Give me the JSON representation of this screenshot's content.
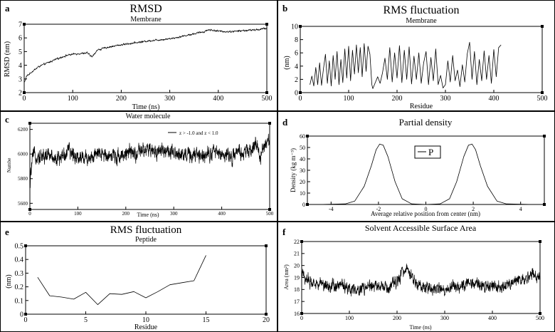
{
  "chart_data": [
    {
      "panel_label": "a",
      "type": "line",
      "title": "RMSD",
      "subtitle": "Membrane",
      "xlabel": "Time (ns)",
      "ylabel": "RMSD (nm)",
      "xlim": [
        0,
        500
      ],
      "ylim": [
        2,
        7
      ],
      "xticks": [
        0,
        100,
        200,
        300,
        400,
        500
      ],
      "yticks": [
        2,
        3,
        4,
        5,
        6,
        7
      ],
      "noise": 0.06,
      "series": [
        {
          "name": "Membrane",
          "x": [
            0,
            5,
            15,
            30,
            50,
            70,
            90,
            110,
            130,
            140,
            150,
            170,
            200,
            230,
            260,
            290,
            310,
            330,
            350,
            370,
            380,
            400,
            420,
            440,
            460,
            480,
            500
          ],
          "y": [
            2.7,
            3.2,
            3.5,
            3.9,
            4.2,
            4.5,
            4.75,
            4.85,
            4.9,
            4.6,
            5.1,
            5.3,
            5.5,
            5.65,
            5.8,
            5.9,
            6.0,
            6.15,
            6.3,
            6.45,
            6.6,
            6.5,
            6.45,
            6.5,
            6.55,
            6.6,
            6.7
          ]
        }
      ]
    },
    {
      "panel_label": "b",
      "type": "line",
      "title": "RMS fluctuation",
      "subtitle": "Membrane",
      "xlabel": "Residue",
      "ylabel": "(nm)",
      "xlim": [
        0,
        500
      ],
      "ylim": [
        0,
        10
      ],
      "xticks": [
        0,
        100,
        200,
        300,
        400,
        500
      ],
      "yticks": [
        0,
        2,
        4,
        6,
        8,
        10
      ],
      "noise": 0.0,
      "series": [
        {
          "name": "Membrane",
          "x": [
            20,
            24,
            28,
            32,
            36,
            40,
            44,
            48,
            52,
            56,
            60,
            64,
            68,
            72,
            76,
            80,
            84,
            88,
            92,
            96,
            100,
            104,
            108,
            112,
            116,
            120,
            124,
            128,
            132,
            136,
            140,
            144,
            148,
            150,
            155,
            160,
            165,
            170,
            175,
            180,
            185,
            190,
            195,
            200,
            205,
            210,
            215,
            220,
            225,
            230,
            235,
            240,
            245,
            250,
            255,
            260,
            265,
            270,
            275,
            280,
            285,
            290,
            295,
            300,
            305,
            310,
            315,
            320,
            325,
            330,
            335,
            340,
            345,
            350,
            355,
            360,
            365,
            370,
            375,
            380,
            385,
            390,
            395,
            400,
            405,
            410,
            415
          ],
          "y": [
            1.2,
            2.5,
            1.0,
            3.8,
            1.2,
            4.5,
            1.1,
            3.6,
            5.8,
            1.4,
            4.8,
            1.0,
            5.6,
            2.0,
            6.2,
            1.2,
            5.0,
            1.5,
            6.6,
            2.2,
            7.0,
            1.8,
            6.4,
            2.8,
            7.2,
            3.0,
            6.8,
            2.4,
            7.4,
            3.2,
            7.0,
            5.8,
            1.2,
            0.6,
            1.5,
            2.4,
            1.4,
            3.0,
            5.2,
            2.0,
            6.8,
            1.6,
            6.0,
            2.2,
            7.1,
            1.5,
            6.4,
            2.0,
            6.9,
            1.3,
            5.5,
            2.0,
            6.0,
            1.4,
            4.5,
            6.2,
            1.2,
            5.3,
            1.8,
            6.6,
            1.2,
            2.6,
            0.7,
            1.2,
            4.8,
            1.6,
            5.6,
            1.8,
            3.4,
            0.9,
            4.2,
            1.6,
            5.8,
            7.6,
            2.0,
            6.2,
            1.2,
            5.0,
            1.8,
            6.3,
            2.0,
            5.6,
            1.4,
            6.5,
            2.4,
            6.8,
            7.2
          ]
        }
      ]
    },
    {
      "panel_label": "c",
      "type": "line",
      "title": "Water molecule",
      "xlabel": "Time (ns)",
      "ylabel": "Numbe",
      "xlim": [
        0,
        500
      ],
      "ylim": [
        5550,
        6250
      ],
      "xticks": [
        0,
        100,
        200,
        300,
        400,
        500
      ],
      "yticks": [
        5600,
        5800,
        6000,
        6200
      ],
      "legend": "z > -1.0 and z < 1.0",
      "noise": 55,
      "series": [
        {
          "name": "z > -1.0 and z < 1.0",
          "x": [
            0,
            2,
            5,
            10,
            20,
            40,
            60,
            80,
            100,
            120,
            140,
            160,
            180,
            200,
            220,
            240,
            260,
            280,
            300,
            320,
            340,
            360,
            380,
            400,
            420,
            440,
            460,
            470,
            480,
            490,
            500
          ],
          "y": [
            5700,
            5850,
            5950,
            6000,
            5980,
            5990,
            5960,
            6020,
            5980,
            5970,
            5990,
            6000,
            5980,
            6010,
            6000,
            6030,
            6020,
            6040,
            5990,
            6010,
            5980,
            6000,
            6020,
            6000,
            5980,
            6010,
            6020,
            6080,
            5990,
            6060,
            6100
          ]
        }
      ]
    },
    {
      "panel_label": "d",
      "type": "line",
      "title": "Partial density",
      "xlabel": "Average relative position from center (nm)",
      "ylabel": "Density (kg m⁻³)",
      "xlim": [
        -5,
        5
      ],
      "ylim": [
        0,
        60
      ],
      "xticks": [
        -4,
        -2,
        0,
        2,
        4
      ],
      "yticks": [
        0,
        10,
        20,
        30,
        40,
        50,
        60
      ],
      "legend": "P",
      "noise": 0,
      "series": [
        {
          "name": "P",
          "x": [
            -4.5,
            -3.4,
            -3.0,
            -2.6,
            -2.3,
            -2.1,
            -1.95,
            -1.8,
            -1.6,
            -1.3,
            -1.0,
            -0.6,
            0,
            0.6,
            1.0,
            1.3,
            1.6,
            1.8,
            1.95,
            2.1,
            2.3,
            2.6,
            3.0,
            3.4,
            4.5
          ],
          "y": [
            0,
            0.5,
            3,
            16,
            34,
            48,
            53,
            52,
            42,
            20,
            5,
            0.5,
            0,
            0.5,
            5,
            20,
            42,
            52,
            53,
            48,
            34,
            16,
            3,
            0.5,
            0
          ]
        }
      ]
    },
    {
      "panel_label": "e",
      "type": "line",
      "title": "RMS fluctuation",
      "subtitle": "Peptide",
      "xlabel": "Residue",
      "ylabel": "(nm)",
      "xlim": [
        0,
        20
      ],
      "ylim": [
        0,
        0.5
      ],
      "xticks": [
        0,
        5,
        10,
        15,
        20
      ],
      "yticks": [
        0,
        0.1,
        0.2,
        0.3,
        0.4,
        0.5
      ],
      "noise": 0,
      "series": [
        {
          "name": "Peptide",
          "x": [
            1,
            2,
            3,
            4,
            5,
            6,
            7,
            8,
            9,
            10,
            11,
            12,
            13,
            14,
            15
          ],
          "y": [
            0.27,
            0.135,
            0.125,
            0.11,
            0.16,
            0.07,
            0.15,
            0.145,
            0.165,
            0.12,
            0.165,
            0.215,
            0.23,
            0.245,
            0.43
          ]
        }
      ]
    },
    {
      "panel_label": "f",
      "type": "line",
      "title": "Solvent Accessible Surface Area",
      "xlabel": "Time (ns)",
      "ylabel": "Area (nm²)",
      "xlim": [
        0,
        500
      ],
      "ylim": [
        16,
        22
      ],
      "xticks": [
        0,
        100,
        200,
        300,
        400,
        500
      ],
      "yticks": [
        16,
        17,
        18,
        19,
        20,
        21,
        22
      ],
      "noise": 0.45,
      "series": [
        {
          "name": "SASA",
          "x": [
            0,
            10,
            20,
            40,
            60,
            80,
            100,
            120,
            140,
            160,
            180,
            200,
            210,
            220,
            230,
            250,
            270,
            300,
            330,
            360,
            390,
            420,
            440,
            460,
            480,
            500
          ],
          "y": [
            19.3,
            18.9,
            18.6,
            18.5,
            18.3,
            18.4,
            18.1,
            18.0,
            18.2,
            18.3,
            18.0,
            18.6,
            19.3,
            20.0,
            19.0,
            18.2,
            18.1,
            18.0,
            18.3,
            18.6,
            18.3,
            18.2,
            18.5,
            18.9,
            19.1,
            19.3
          ]
        }
      ]
    }
  ]
}
